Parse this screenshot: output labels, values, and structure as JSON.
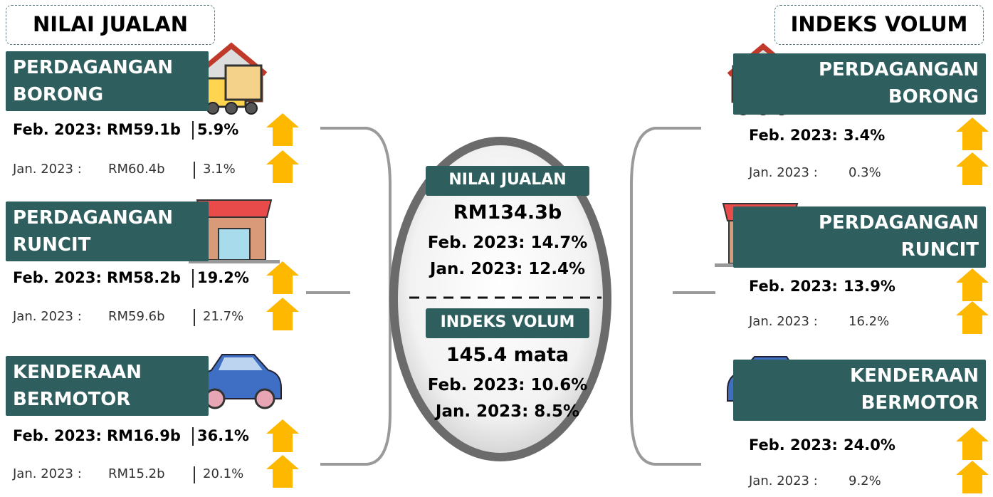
{
  "left": {
    "title": "NILAI JUALAN",
    "sectors": [
      {
        "name": [
          "PERDAGANGAN",
          "BORONG"
        ],
        "current": {
          "period": "Feb. 2023:",
          "value": "RM59.1b",
          "growth": "5.9%"
        },
        "previous": {
          "period": "Jan. 2023  :",
          "value": "RM60.4b",
          "growth": "3.1%"
        }
      },
      {
        "name": [
          "PERDAGANGAN",
          "RUNCIT"
        ],
        "current": {
          "period": "Feb. 2023:",
          "value": "RM58.2b",
          "growth": "19.2%"
        },
        "previous": {
          "period": "Jan. 2023  :",
          "value": "RM59.6b",
          "growth": "21.7%"
        }
      },
      {
        "name": [
          "KENDERAAN",
          "BERMOTOR"
        ],
        "current": {
          "period": "Feb. 2023:",
          "value": "RM16.9b",
          "growth": "36.1%"
        },
        "previous": {
          "period": "Jan. 2023  :",
          "value": "RM15.2b",
          "growth": "20.1%"
        }
      }
    ]
  },
  "right": {
    "title": "INDEKS VOLUM",
    "sectors": [
      {
        "name": [
          "PERDAGANGAN",
          "BORONG"
        ],
        "current": {
          "period": "Feb. 2023:",
          "growth": "3.4%"
        },
        "previous": {
          "period": "Jan. 2023  :",
          "growth": "0.3%"
        }
      },
      {
        "name": [
          "PERDAGANGAN",
          "RUNCIT"
        ],
        "current": {
          "period": "Feb. 2023:",
          "growth": "13.9%"
        },
        "previous": {
          "period": "Jan. 2023  :",
          "growth": "16.2%"
        }
      },
      {
        "name": [
          "KENDERAAN",
          "BERMOTOR"
        ],
        "current": {
          "period": "Feb. 2023:",
          "growth": "24.0%"
        },
        "previous": {
          "period": "Jan. 2023  :",
          "growth": "9.2%"
        }
      }
    ]
  },
  "center": {
    "sales": {
      "label": "NILAI JUALAN",
      "value": "RM134.3b",
      "lines": [
        "Feb. 2023: 14.7%",
        "Jan. 2023: 12.4%"
      ]
    },
    "volume": {
      "label": "INDEKS VOLUM",
      "value": "145.4 mata",
      "lines": [
        "Feb. 2023: 10.6%",
        "Jan. 2023: 8.5%"
      ]
    }
  }
}
